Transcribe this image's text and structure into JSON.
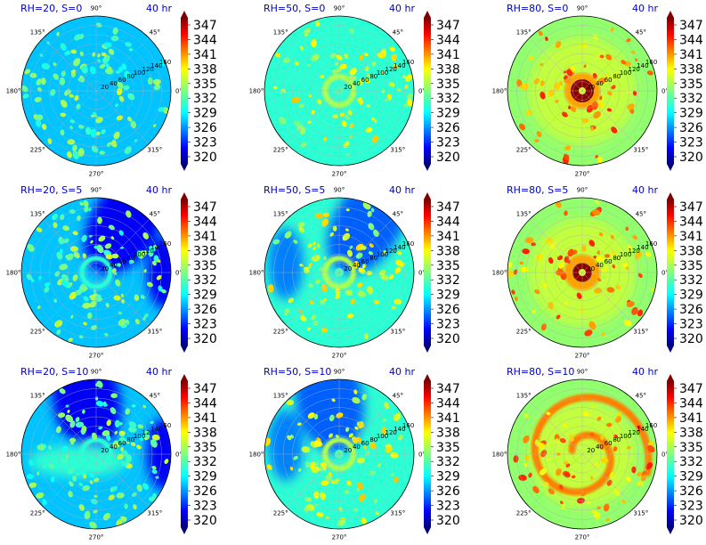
{
  "chart_data": {
    "type": "polar-filled-contour-grid",
    "time_label": "40 hr",
    "panels": [
      {
        "title": "RH=20, S=0",
        "rh": 20,
        "s": 0
      },
      {
        "title": "RH=50, S=0",
        "rh": 50,
        "s": 0
      },
      {
        "title": "RH=80, S=0",
        "rh": 80,
        "s": 0
      },
      {
        "title": "RH=20, S=5",
        "rh": 20,
        "s": 5
      },
      {
        "title": "RH=50, S=5",
        "rh": 50,
        "s": 5
      },
      {
        "title": "RH=80, S=5",
        "rh": 80,
        "s": 5
      },
      {
        "title": "RH=20, S=10",
        "rh": 20,
        "s": 10
      },
      {
        "title": "RH=50, S=10",
        "rh": 50,
        "s": 10
      },
      {
        "title": "RH=80, S=10",
        "rh": 80,
        "s": 10
      }
    ],
    "angle_labels": [
      "0°",
      "45°",
      "90°",
      "135°",
      "180°",
      "225°",
      "270°",
      "315°"
    ],
    "radial_labels": [
      "20",
      "40",
      "60",
      "80",
      "100",
      "120",
      "140",
      "160"
    ],
    "colorbar_ticks": [
      "347",
      "344",
      "341",
      "338",
      "335",
      "332",
      "329",
      "326",
      "323",
      "320"
    ],
    "colorbar_range": [
      320,
      350
    ],
    "colormap": "jet"
  }
}
